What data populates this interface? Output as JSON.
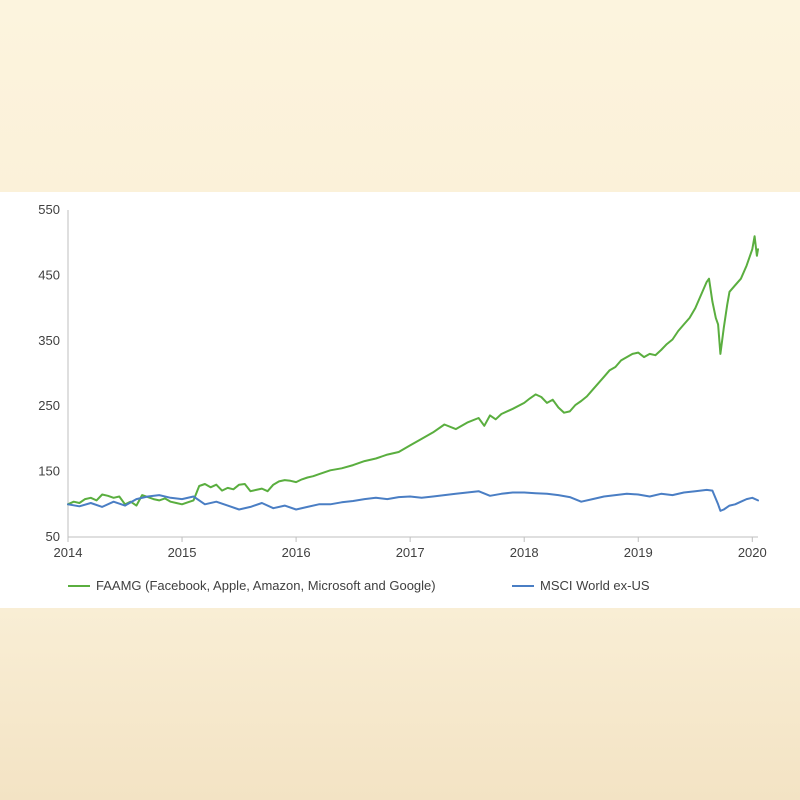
{
  "chart_data": {
    "type": "line",
    "title": "",
    "xlabel": "",
    "ylabel": "",
    "ylim": [
      50,
      550
    ],
    "yticks": [
      50,
      150,
      250,
      350,
      450,
      550
    ],
    "xlim": [
      2014,
      2020.05
    ],
    "xticks": [
      2014,
      2015,
      2016,
      2017,
      2018,
      2019,
      2020
    ],
    "grid": false,
    "legend_position": "bottom",
    "series": [
      {
        "name": "FAAMG (Facebook, Apple, Amazon, Microsoft and Google)",
        "color": "#5aae3f",
        "x": [
          2014.0,
          2014.05,
          2014.1,
          2014.15,
          2014.2,
          2014.25,
          2014.3,
          2014.35,
          2014.4,
          2014.45,
          2014.5,
          2014.55,
          2014.6,
          2014.65,
          2014.7,
          2014.75,
          2014.8,
          2014.85,
          2014.9,
          2014.95,
          2015.0,
          2015.05,
          2015.1,
          2015.15,
          2015.2,
          2015.25,
          2015.3,
          2015.35,
          2015.4,
          2015.45,
          2015.5,
          2015.55,
          2015.6,
          2015.65,
          2015.7,
          2015.75,
          2015.8,
          2015.85,
          2015.9,
          2015.95,
          2016.0,
          2016.05,
          2016.1,
          2016.15,
          2016.2,
          2016.3,
          2016.4,
          2016.5,
          2016.6,
          2016.7,
          2016.8,
          2016.9,
          2017.0,
          2017.1,
          2017.2,
          2017.3,
          2017.4,
          2017.5,
          2017.6,
          2017.65,
          2017.7,
          2017.75,
          2017.8,
          2017.9,
          2018.0,
          2018.05,
          2018.1,
          2018.15,
          2018.2,
          2018.25,
          2018.3,
          2018.35,
          2018.4,
          2018.45,
          2018.5,
          2018.55,
          2018.6,
          2018.65,
          2018.7,
          2018.75,
          2018.8,
          2018.85,
          2018.9,
          2018.95,
          2019.0,
          2019.05,
          2019.1,
          2019.15,
          2019.2,
          2019.25,
          2019.3,
          2019.35,
          2019.4,
          2019.45,
          2019.5,
          2019.55,
          2019.6,
          2019.62,
          2019.65,
          2019.68,
          2019.7,
          2019.72,
          2019.75,
          2019.78,
          2019.8,
          2019.85,
          2019.9,
          2019.95,
          2020.0,
          2020.02,
          2020.04,
          2020.05
        ],
        "values": [
          100,
          104,
          102,
          108,
          110,
          106,
          115,
          113,
          110,
          112,
          100,
          104,
          98,
          114,
          111,
          108,
          106,
          109,
          104,
          102,
          100,
          103,
          106,
          128,
          131,
          126,
          130,
          121,
          125,
          123,
          130,
          131,
          120,
          122,
          124,
          120,
          130,
          135,
          137,
          136,
          134,
          138,
          141,
          143,
          146,
          152,
          155,
          160,
          166,
          170,
          176,
          180,
          190,
          200,
          210,
          222,
          215,
          225,
          232,
          220,
          236,
          230,
          238,
          246,
          255,
          262,
          268,
          264,
          255,
          260,
          248,
          240,
          242,
          252,
          258,
          265,
          275,
          285,
          295,
          305,
          310,
          320,
          325,
          330,
          332,
          325,
          330,
          328,
          336,
          345,
          352,
          365,
          375,
          385,
          400,
          420,
          440,
          445,
          410,
          385,
          375,
          330,
          370,
          405,
          425,
          435,
          445,
          465,
          490,
          510,
          480,
          490
        ]
      },
      {
        "name": "MSCI World ex-US",
        "color": "#4a7ec4",
        "x": [
          2014.0,
          2014.1,
          2014.2,
          2014.3,
          2014.4,
          2014.5,
          2014.6,
          2014.7,
          2014.8,
          2014.9,
          2015.0,
          2015.1,
          2015.2,
          2015.3,
          2015.4,
          2015.5,
          2015.6,
          2015.7,
          2015.8,
          2015.9,
          2016.0,
          2016.1,
          2016.2,
          2016.3,
          2016.4,
          2016.5,
          2016.6,
          2016.7,
          2016.8,
          2016.9,
          2017.0,
          2017.1,
          2017.2,
          2017.3,
          2017.4,
          2017.5,
          2017.6,
          2017.7,
          2017.8,
          2017.9,
          2018.0,
          2018.1,
          2018.2,
          2018.3,
          2018.4,
          2018.5,
          2018.6,
          2018.7,
          2018.8,
          2018.9,
          2019.0,
          2019.1,
          2019.2,
          2019.3,
          2019.4,
          2019.5,
          2019.6,
          2019.65,
          2019.7,
          2019.72,
          2019.75,
          2019.8,
          2019.85,
          2019.9,
          2019.95,
          2020.0,
          2020.05
        ],
        "values": [
          100,
          97,
          102,
          96,
          104,
          98,
          108,
          112,
          114,
          110,
          108,
          112,
          100,
          104,
          98,
          92,
          96,
          102,
          94,
          98,
          92,
          96,
          100,
          100,
          103,
          105,
          108,
          110,
          108,
          111,
          112,
          110,
          112,
          114,
          116,
          118,
          120,
          113,
          116,
          118,
          118,
          117,
          116,
          114,
          111,
          104,
          108,
          112,
          114,
          116,
          115,
          112,
          116,
          114,
          118,
          120,
          122,
          121,
          100,
          90,
          92,
          98,
          100,
          104,
          108,
          110,
          106
        ]
      }
    ]
  }
}
